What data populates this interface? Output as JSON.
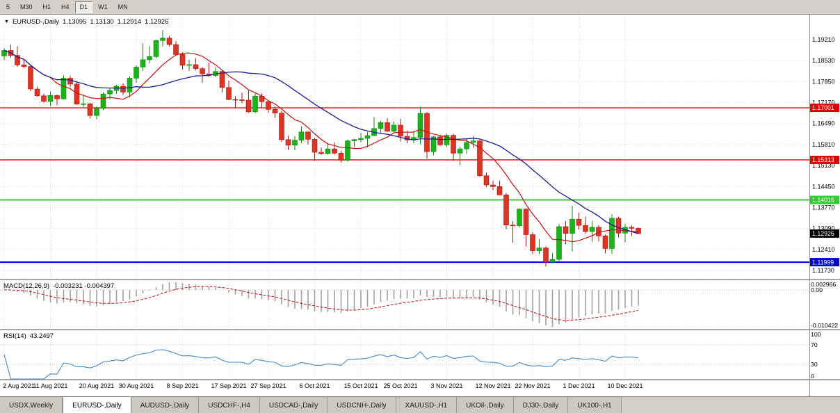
{
  "toolbar": {
    "timeframes": [
      "5",
      "M30",
      "H1",
      "H4",
      "D1",
      "W1",
      "MN"
    ],
    "active_timeframe": "D1"
  },
  "chart": {
    "title": {
      "symbol": "EURUSD-,Daily",
      "open": "1.13095",
      "high": "1.13130",
      "low": "1.12914",
      "close": "1.12926"
    },
    "colors": {
      "bull": "#1cb21c",
      "bull_stroke": "#0e8a0e",
      "bear": "#dd3426",
      "bear_stroke": "#a3190e",
      "ma_fast": "#c41111",
      "ma_slow": "#1c1c96",
      "macd_hist": "#a0a0a0",
      "macd_signal": "#c41111",
      "rsi_line": "#4189c7",
      "grid": "#d9d9d9"
    },
    "price_axis": {
      "labels": [
        "1.19210",
        "1.18530",
        "1.17850",
        "1.17170",
        "1.16490",
        "1.15810",
        "1.15130",
        "1.14450",
        "1.13770",
        "1.13090",
        "1.12410",
        "1.11730"
      ]
    },
    "hlines": [
      {
        "price": 1.17001,
        "label": "1.17001",
        "color": "#e00000",
        "width": 1.4
      },
      {
        "price": 1.15313,
        "label": "1.15313",
        "color": "#e00000",
        "width": 1.4
      },
      {
        "price": 1.14016,
        "label": "1.14016",
        "color": "#2fce2f",
        "width": 2.0
      },
      {
        "price": 1.11999,
        "label": "1.11999",
        "color": "#0000dd",
        "width": 2.2
      }
    ],
    "current_price": {
      "value": 1.12926,
      "label": "1.12926"
    }
  },
  "macd": {
    "label": "MACD(12,26,9)",
    "values_text": "-0.003231 -0.004397",
    "axis_labels": [
      "0.002966",
      "0.00",
      "-0.010422"
    ]
  },
  "rsi": {
    "label": "RSI(14)",
    "value_text": "43.2497",
    "axis_labels": [
      "100",
      "70",
      "30",
      "0"
    ],
    "levels": [
      70,
      30
    ]
  },
  "tabs": {
    "items": [
      {
        "label": "USDX,Weekly",
        "active": false
      },
      {
        "label": "EURUSD-,Daily",
        "active": true
      },
      {
        "label": "AUDUSD-,Daily",
        "active": false
      },
      {
        "label": "USDCHF-,H4",
        "active": false
      },
      {
        "label": "USDCAD-,Daily",
        "active": false
      },
      {
        "label": "USDCNH-,Daily",
        "active": false
      },
      {
        "label": "XAUUSD-,H1",
        "active": false
      },
      {
        "label": "UKOil-,Daily",
        "active": false
      },
      {
        "label": "DJ30-,Daily",
        "active": false
      },
      {
        "label": "UK100-,H1",
        "active": false
      }
    ]
  },
  "chart_data": {
    "type": "candlestick",
    "symbol": "EURUSD-",
    "timeframe": "Daily",
    "current_bar": {
      "open": 1.13095,
      "high": 1.1313,
      "low": 1.12914,
      "close": 1.12926
    },
    "horizontal_levels": [
      1.17001,
      1.15313,
      1.14016,
      1.11999
    ],
    "indicators": [
      {
        "name": "MACD",
        "params": [
          12,
          26,
          9
        ],
        "values": [
          -0.003231,
          -0.004397
        ]
      },
      {
        "name": "RSI",
        "params": [
          14
        ],
        "value": 43.2497
      }
    ],
    "candles": [
      [
        1.1868,
        1.1893,
        1.1855,
        1.1886
      ],
      [
        1.1886,
        1.1905,
        1.1862,
        1.187
      ],
      [
        1.187,
        1.1899,
        1.1833,
        1.1839
      ],
      [
        1.1839,
        1.1858,
        1.1829,
        1.1834
      ],
      [
        1.1834,
        1.184,
        1.1754,
        1.1761
      ],
      [
        1.1761,
        1.1769,
        1.1736,
        1.1739
      ],
      [
        1.1739,
        1.1746,
        1.1717,
        1.1721
      ],
      [
        1.1721,
        1.1753,
        1.1706,
        1.174
      ],
      [
        1.174,
        1.1743,
        1.1709,
        1.1729
      ],
      [
        1.1729,
        1.1805,
        1.1727,
        1.1796
      ],
      [
        1.1796,
        1.1804,
        1.1767,
        1.1777
      ],
      [
        1.1777,
        1.1785,
        1.171,
        1.1712
      ],
      [
        1.1712,
        1.1743,
        1.1703,
        1.1713
      ],
      [
        1.1713,
        1.1716,
        1.1665,
        1.1675
      ],
      [
        1.1675,
        1.1705,
        1.1663,
        1.1698
      ],
      [
        1.1698,
        1.175,
        1.1693,
        1.1745
      ],
      [
        1.1745,
        1.1765,
        1.1727,
        1.1756
      ],
      [
        1.1756,
        1.1775,
        1.1745,
        1.177
      ],
      [
        1.177,
        1.1779,
        1.1742,
        1.1751
      ],
      [
        1.1751,
        1.1802,
        1.1735,
        1.1796
      ],
      [
        1.1796,
        1.1838,
        1.1781,
        1.1832
      ],
      [
        1.1832,
        1.1909,
        1.182,
        1.1856
      ],
      [
        1.1856,
        1.19,
        1.1844,
        1.1866
      ],
      [
        1.1866,
        1.1921,
        1.186,
        1.1918
      ],
      [
        1.1918,
        1.1952,
        1.19,
        1.1926
      ],
      [
        1.1926,
        1.1933,
        1.1899,
        1.1905
      ],
      [
        1.1905,
        1.1916,
        1.1868,
        1.1873
      ],
      [
        1.1873,
        1.188,
        1.1824,
        1.1838
      ],
      [
        1.1838,
        1.1856,
        1.182,
        1.184
      ],
      [
        1.184,
        1.1861,
        1.1822,
        1.1827
      ],
      [
        1.1827,
        1.1832,
        1.1782,
        1.181
      ],
      [
        1.181,
        1.1846,
        1.18,
        1.1805
      ],
      [
        1.1805,
        1.1832,
        1.1799,
        1.1818
      ],
      [
        1.1818,
        1.1822,
        1.175,
        1.1766
      ],
      [
        1.1766,
        1.1788,
        1.1725,
        1.1727
      ],
      [
        1.1727,
        1.1738,
        1.17,
        1.1726
      ],
      [
        1.1726,
        1.1749,
        1.1715,
        1.1725
      ],
      [
        1.1725,
        1.1756,
        1.1684,
        1.1687
      ],
      [
        1.1687,
        1.175,
        1.1683,
        1.1738
      ],
      [
        1.1738,
        1.1747,
        1.1701,
        1.172
      ],
      [
        1.172,
        1.1722,
        1.1684,
        1.1695
      ],
      [
        1.1695,
        1.1705,
        1.1668,
        1.1683
      ],
      [
        1.1683,
        1.169,
        1.1589,
        1.1597
      ],
      [
        1.1597,
        1.161,
        1.1563,
        1.1579
      ],
      [
        1.1579,
        1.1608,
        1.1562,
        1.1595
      ],
      [
        1.1595,
        1.164,
        1.1586,
        1.1622
      ],
      [
        1.1622,
        1.1623,
        1.1581,
        1.1598
      ],
      [
        1.1598,
        1.1602,
        1.1529,
        1.1556
      ],
      [
        1.1556,
        1.1572,
        1.1547,
        1.1552
      ],
      [
        1.1552,
        1.1586,
        1.1549,
        1.1567
      ],
      [
        1.1567,
        1.1588,
        1.1549,
        1.1553
      ],
      [
        1.1553,
        1.1561,
        1.1522,
        1.153
      ],
      [
        1.153,
        1.1597,
        1.1525,
        1.1593
      ],
      [
        1.1593,
        1.16,
        1.1573,
        1.1597
      ],
      [
        1.1597,
        1.1619,
        1.1588,
        1.1601
      ],
      [
        1.1601,
        1.1622,
        1.1572,
        1.161
      ],
      [
        1.161,
        1.167,
        1.1609,
        1.1633
      ],
      [
        1.1633,
        1.1658,
        1.1617,
        1.1652
      ],
      [
        1.1652,
        1.1667,
        1.1622,
        1.1624
      ],
      [
        1.1624,
        1.1656,
        1.162,
        1.1644
      ],
      [
        1.1644,
        1.1664,
        1.1591,
        1.1608
      ],
      [
        1.1608,
        1.1626,
        1.1585,
        1.1596
      ],
      [
        1.1596,
        1.1626,
        1.1585,
        1.1604
      ],
      [
        1.1604,
        1.1703,
        1.1582,
        1.1682
      ],
      [
        1.1682,
        1.1686,
        1.1535,
        1.1558
      ],
      [
        1.1558,
        1.1609,
        1.1546,
        1.1606
      ],
      [
        1.1606,
        1.161,
        1.1576,
        1.158
      ],
      [
        1.158,
        1.1616,
        1.1573,
        1.1611
      ],
      [
        1.1611,
        1.1617,
        1.1528,
        1.1553
      ],
      [
        1.1553,
        1.1574,
        1.1514,
        1.1567
      ],
      [
        1.1567,
        1.1599,
        1.1551,
        1.1588
      ],
      [
        1.1588,
        1.1609,
        1.157,
        1.1593
      ],
      [
        1.1593,
        1.1595,
        1.1476,
        1.148
      ],
      [
        1.148,
        1.149,
        1.1443,
        1.145
      ],
      [
        1.145,
        1.1464,
        1.1433,
        1.1445
      ],
      [
        1.1445,
        1.1464,
        1.1416,
        1.1418
      ],
      [
        1.1418,
        1.1424,
        1.1307,
        1.132
      ],
      [
        1.132,
        1.1333,
        1.1263,
        1.1318
      ],
      [
        1.1318,
        1.1374,
        1.1313,
        1.1372
      ],
      [
        1.1372,
        1.1374,
        1.125,
        1.1289
      ],
      [
        1.1289,
        1.1297,
        1.1226,
        1.1237
      ],
      [
        1.1237,
        1.1275,
        1.1226,
        1.1246
      ],
      [
        1.1246,
        1.1251,
        1.1186,
        1.12
      ],
      [
        1.12,
        1.123,
        1.1196,
        1.1209
      ],
      [
        1.1209,
        1.1323,
        1.1203,
        1.1315
      ],
      [
        1.1315,
        1.1333,
        1.1258,
        1.1293
      ],
      [
        1.1293,
        1.1383,
        1.1235,
        1.1339
      ],
      [
        1.1339,
        1.136,
        1.1305,
        1.1319
      ],
      [
        1.1319,
        1.1348,
        1.1293,
        1.1299
      ],
      [
        1.1299,
        1.1334,
        1.1266,
        1.1313
      ],
      [
        1.1313,
        1.132,
        1.1267,
        1.1285
      ],
      [
        1.1285,
        1.129,
        1.1228,
        1.1244
      ],
      [
        1.1244,
        1.1355,
        1.1227,
        1.1342
      ],
      [
        1.1342,
        1.1348,
        1.128,
        1.1294
      ],
      [
        1.1294,
        1.1324,
        1.1264,
        1.1313
      ],
      [
        1.1313,
        1.1319,
        1.1285,
        1.13095
      ],
      [
        1.13095,
        1.1313,
        1.12914,
        1.12926
      ]
    ],
    "date_labels": [
      {
        "index": 0,
        "text": "2 Aug 2021"
      },
      {
        "index": 7,
        "text": "11 Aug 2021"
      },
      {
        "index": 14,
        "text": "20 Aug 2021"
      },
      {
        "index": 20,
        "text": "30 Aug 2021"
      },
      {
        "index": 27,
        "text": "8 Sep 2021"
      },
      {
        "index": 34,
        "text": "17 Sep 2021"
      },
      {
        "index": 40,
        "text": "27 Sep 2021"
      },
      {
        "index": 47,
        "text": "6 Oct 2021"
      },
      {
        "index": 54,
        "text": "15 Oct 2021"
      },
      {
        "index": 60,
        "text": "25 Oct 2021"
      },
      {
        "index": 67,
        "text": "3 Nov 2021"
      },
      {
        "index": 74,
        "text": "12 Nov 2021"
      },
      {
        "index": 80,
        "text": "22 Nov 2021"
      },
      {
        "index": 87,
        "text": "1 Dec 2021"
      },
      {
        "index": 94,
        "text": "10 Dec 2021"
      }
    ]
  }
}
